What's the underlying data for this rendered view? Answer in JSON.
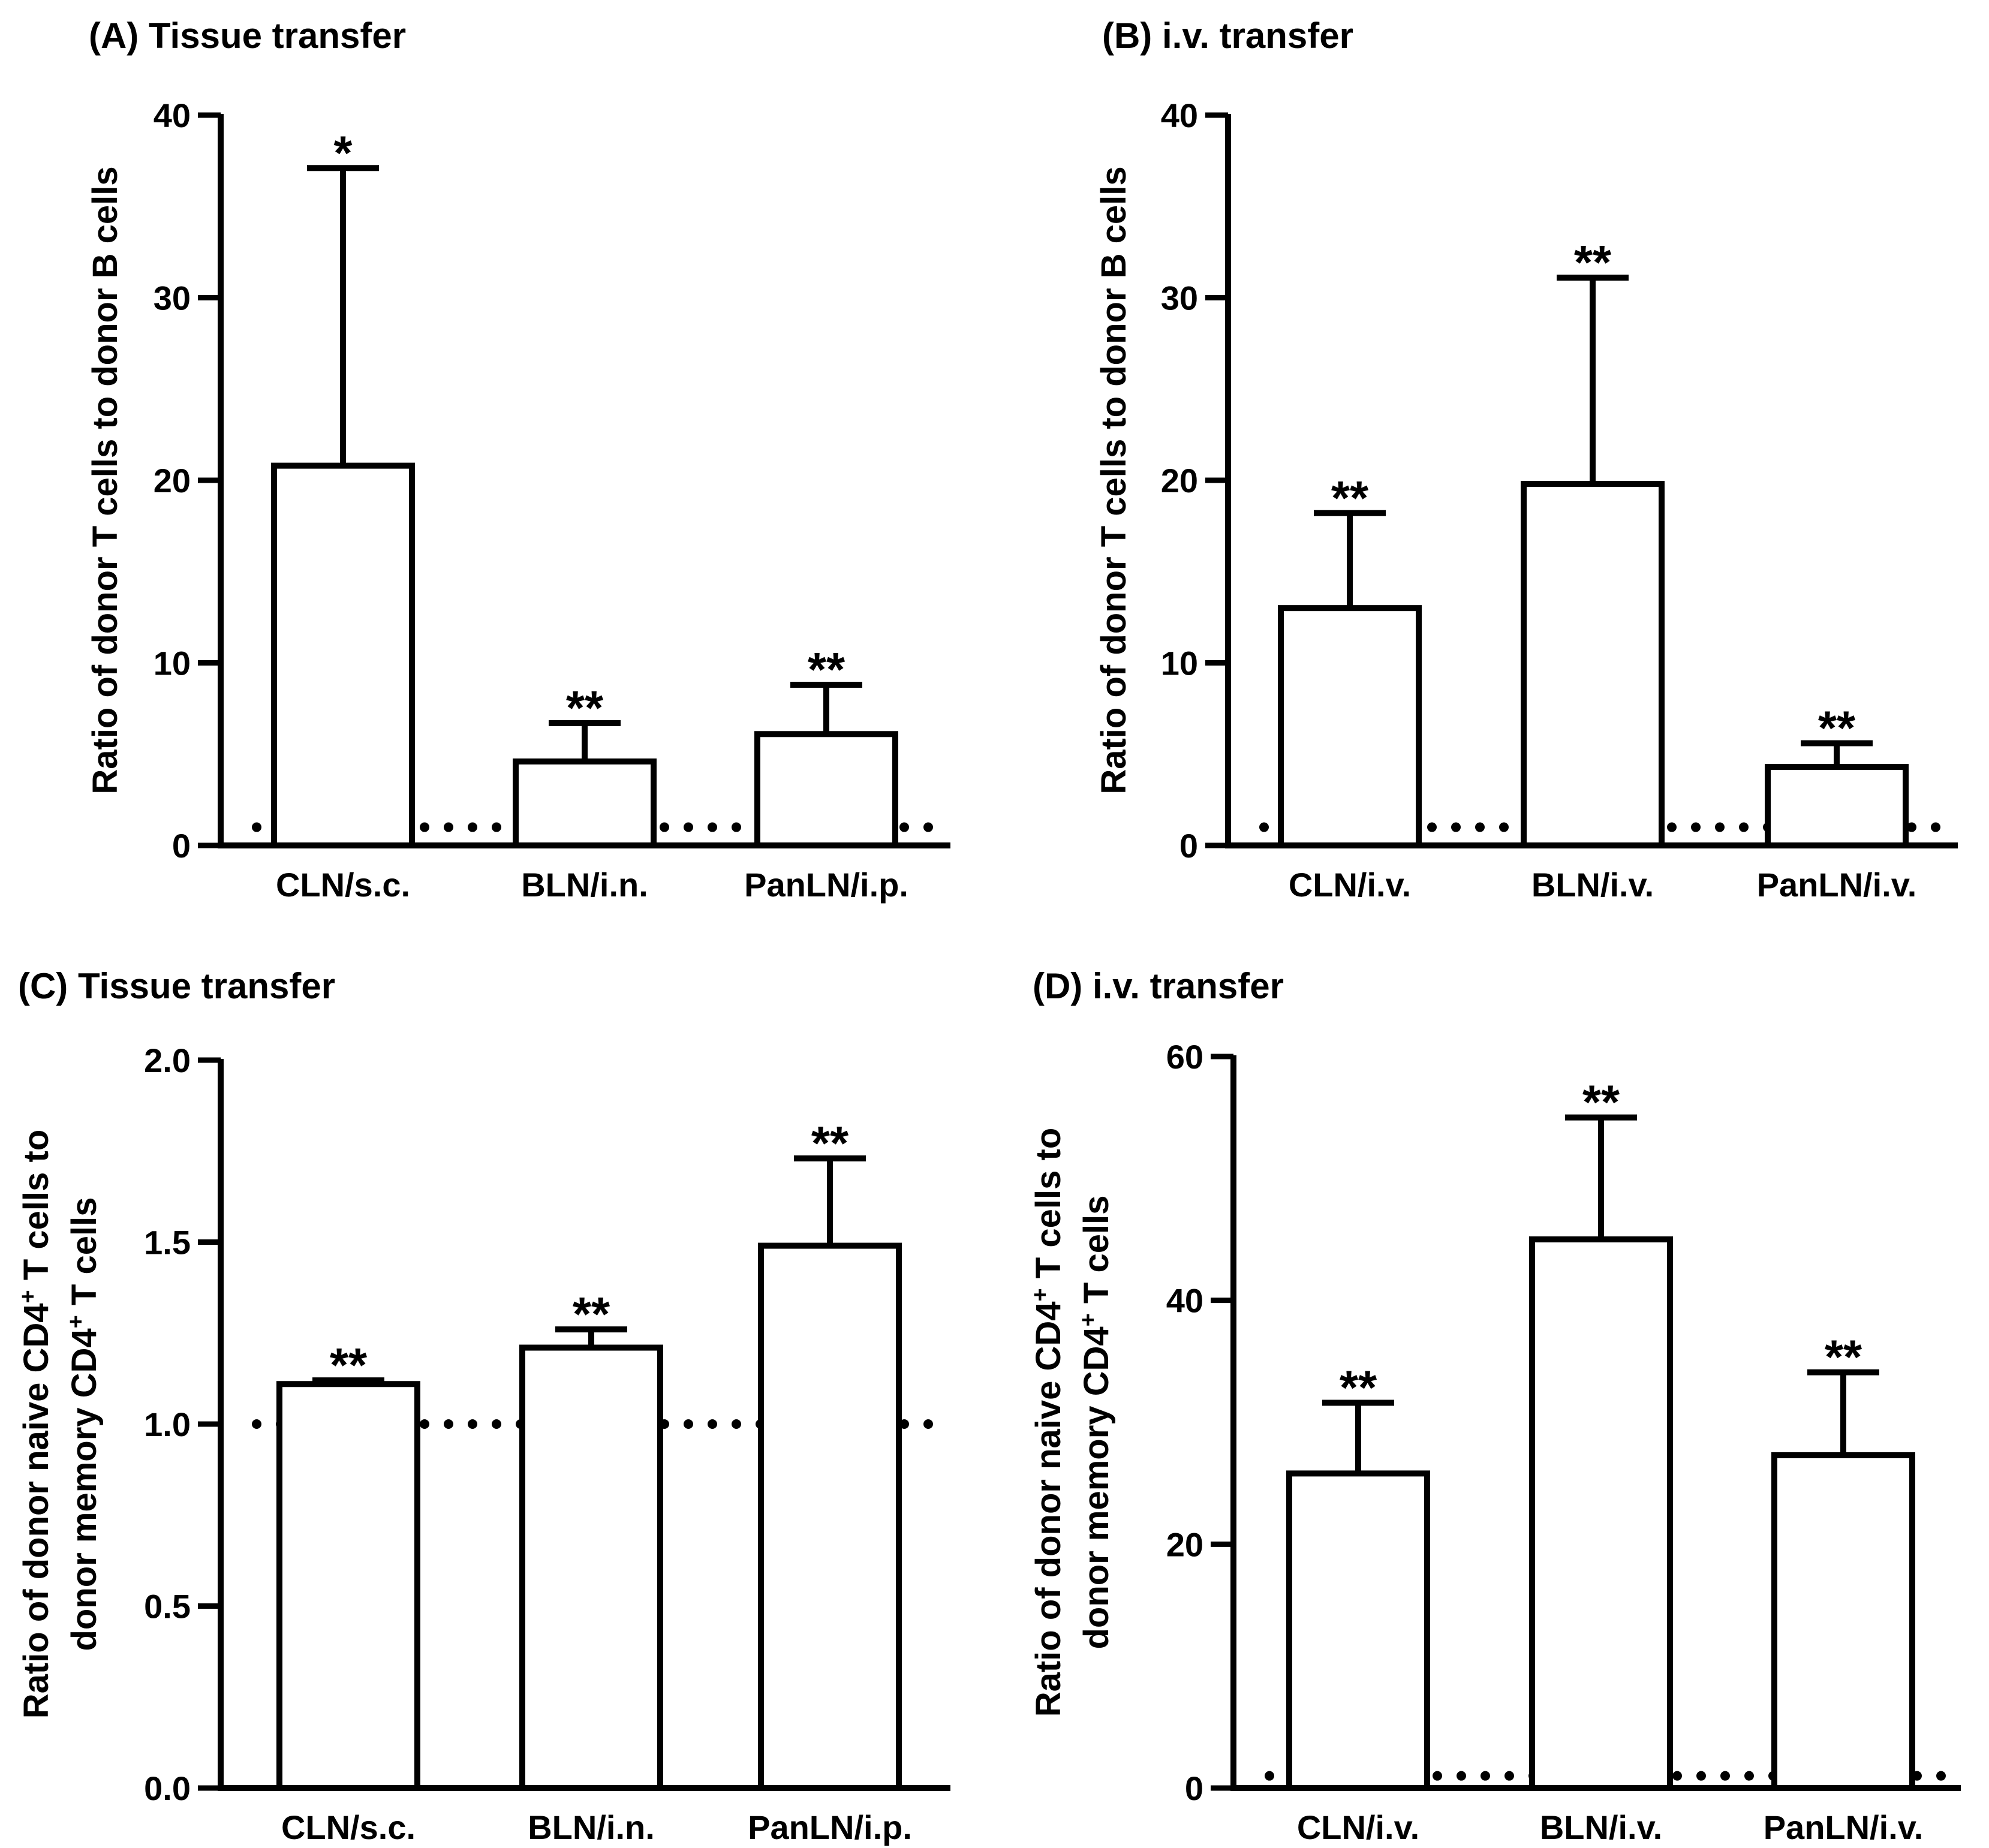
{
  "chart_data": [
    {
      "panel": "(A)",
      "title": "Tissue transfer",
      "type": "bar",
      "ylabel": [
        "Ratio of donor T cells to donor B cells"
      ],
      "categories": [
        "CLN/s.c.",
        "BLN/i.n.",
        "PanLN/i.p."
      ],
      "values": [
        20.8,
        4.6,
        6.1
      ],
      "errors": [
        16.3,
        2.1,
        2.7
      ],
      "significance": [
        "*",
        "**",
        "**"
      ],
      "ylim": [
        0,
        40
      ],
      "yticks": [
        0,
        10,
        20,
        30,
        40
      ],
      "ytick_labels": [
        "0",
        "10",
        "20",
        "30",
        "40"
      ],
      "reference_line": 1
    },
    {
      "panel": "(B)",
      "title": "i.v. transfer",
      "type": "bar",
      "ylabel": [
        "Ratio of donor T cells to donor B cells"
      ],
      "categories": [
        "CLN/i.v.",
        "BLN/i.v.",
        "PanLN/i.v."
      ],
      "values": [
        13.0,
        19.8,
        4.3
      ],
      "errors": [
        5.2,
        11.3,
        1.3
      ],
      "significance": [
        "**",
        "**",
        "**"
      ],
      "ylim": [
        0,
        40
      ],
      "yticks": [
        0,
        10,
        20,
        30,
        40
      ],
      "ytick_labels": [
        "0",
        "10",
        "20",
        "30",
        "40"
      ],
      "reference_line": 1
    },
    {
      "panel": "(C)",
      "title": "Tissue transfer",
      "type": "bar",
      "ylabel": [
        "Ratio of donor naive CD4+ T cells to",
        "donor memory CD4+ T cells"
      ],
      "categories": [
        "CLN/s.c.",
        "BLN/i.n.",
        "PanLN/i.p."
      ],
      "values": [
        1.11,
        1.21,
        1.49
      ],
      "errors": [
        0.01,
        0.05,
        0.24
      ],
      "significance": [
        "**",
        "**",
        "**"
      ],
      "ylim": [
        0,
        2
      ],
      "yticks": [
        0,
        0.5,
        1,
        1.5,
        2
      ],
      "ytick_labels": [
        "0.0",
        "0.5",
        "1.0",
        "1.5",
        "2.0"
      ],
      "reference_line": 1
    },
    {
      "panel": "(D)",
      "title": "i.v. transfer",
      "type": "bar",
      "ylabel": [
        "Ratio of donor naive CD4+ T cells to",
        "donor memory CD4+ T cells"
      ],
      "categories": [
        "CLN/i.v.",
        "BLN/i.v.",
        "PanLN/i.v."
      ],
      "values": [
        25.8,
        45.0,
        27.3
      ],
      "errors": [
        5.8,
        10.0,
        6.8
      ],
      "significance": [
        "**",
        "**",
        "**"
      ],
      "ylim": [
        0,
        60
      ],
      "yticks": [
        0,
        20,
        40,
        60
      ],
      "ytick_labels": [
        "0",
        "20",
        "40",
        "60"
      ],
      "reference_line": 1
    }
  ]
}
